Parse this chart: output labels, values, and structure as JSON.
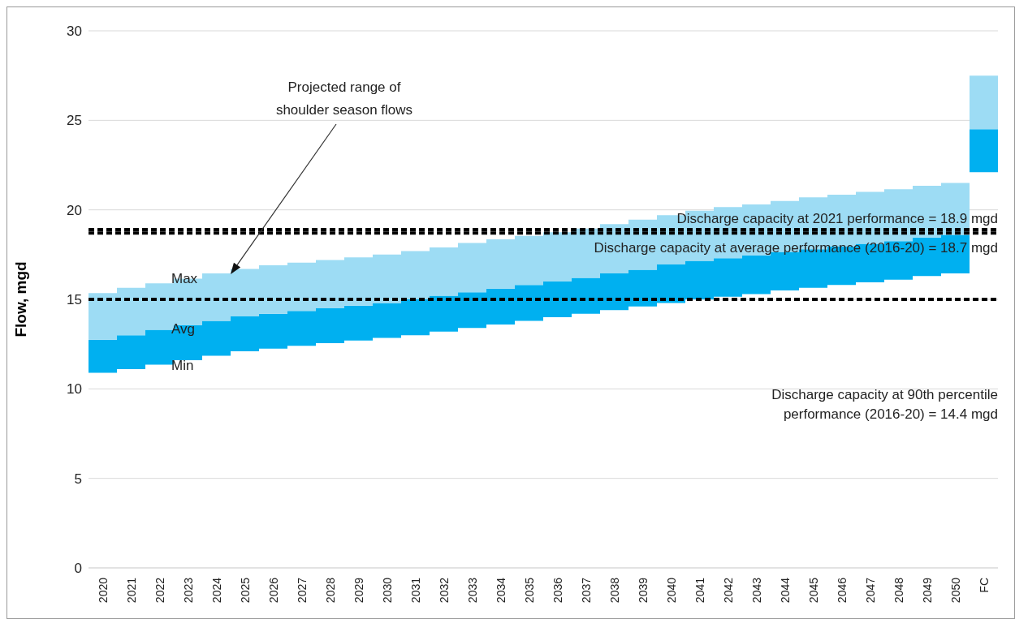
{
  "chart_data": {
    "type": "bar",
    "ylabel": "Flow, mgd",
    "categories": [
      "2020",
      "2021",
      "2022",
      "2023",
      "2024",
      "2025",
      "2026",
      "2027",
      "2028",
      "2029",
      "2030",
      "2031",
      "2032",
      "2033",
      "2034",
      "2035",
      "2036",
      "2037",
      "2038",
      "2039",
      "2040",
      "2041",
      "2042",
      "2043",
      "2044",
      "2045",
      "2046",
      "2047",
      "2048",
      "2049",
      "2050",
      "FC"
    ],
    "series": [
      {
        "color": "#00b0f0",
        "base": [
          10.9,
          11.1,
          11.35,
          11.6,
          11.85,
          12.1,
          12.25,
          12.4,
          12.55,
          12.7,
          12.85,
          13.0,
          13.2,
          13.4,
          13.6,
          13.8,
          14.0,
          14.2,
          14.4,
          14.6,
          14.8,
          15.0,
          15.15,
          15.3,
          15.5,
          15.65,
          15.8,
          15.95,
          16.1,
          16.3,
          16.45,
          22.1
        ],
        "values": [
          1.85,
          1.9,
          1.95,
          1.95,
          1.95,
          1.95,
          1.95,
          1.95,
          1.95,
          1.95,
          1.95,
          2.0,
          2.0,
          2.0,
          2.0,
          2.0,
          2.0,
          2.0,
          2.05,
          2.05,
          2.15,
          2.15,
          2.15,
          2.15,
          2.15,
          2.15,
          2.15,
          2.15,
          2.15,
          2.15,
          2.15,
          2.4
        ]
      },
      {
        "color": "#9ddcf4",
        "base": [
          12.75,
          13.0,
          13.3,
          13.55,
          13.8,
          14.05,
          14.2,
          14.35,
          14.5,
          14.65,
          14.8,
          15.0,
          15.2,
          15.4,
          15.6,
          15.8,
          16.0,
          16.2,
          16.45,
          16.65,
          16.95,
          17.15,
          17.3,
          17.45,
          17.65,
          17.8,
          17.95,
          18.1,
          18.25,
          18.45,
          18.6,
          24.5
        ],
        "values": [
          2.6,
          2.65,
          2.6,
          2.6,
          2.65,
          2.65,
          2.7,
          2.7,
          2.7,
          2.7,
          2.7,
          2.7,
          2.7,
          2.75,
          2.75,
          2.75,
          2.75,
          2.75,
          2.75,
          2.8,
          2.75,
          2.8,
          2.85,
          2.85,
          2.85,
          2.9,
          2.9,
          2.9,
          2.9,
          2.9,
          2.9,
          3.0
        ]
      }
    ],
    "ylim": [
      0,
      30
    ],
    "yticks": [
      0,
      5,
      10,
      15,
      20,
      25,
      30
    ],
    "grid": "y",
    "ref_lines": [
      {
        "axis": "y",
        "value": 18.9,
        "label": "Discharge capacity at 2021 performance = 18.9 mgd",
        "color": "#000000",
        "line_style": "dashed"
      },
      {
        "axis": "y",
        "value": 18.7,
        "label": "Discharge capacity at average performance (2016-20) = 18.7 mgd",
        "color": "#000000",
        "line_style": "dashed"
      },
      {
        "axis": "y",
        "value": 15,
        "color": "#000000",
        "line_style": "dashed"
      }
    ],
    "annotations": [
      "Max",
      "Avg",
      "Min",
      "Projected range of\nshoulder season flows",
      "Discharge capacity at 90th percentile\nperformance (2016-20) = 14.4 mgd"
    ]
  }
}
